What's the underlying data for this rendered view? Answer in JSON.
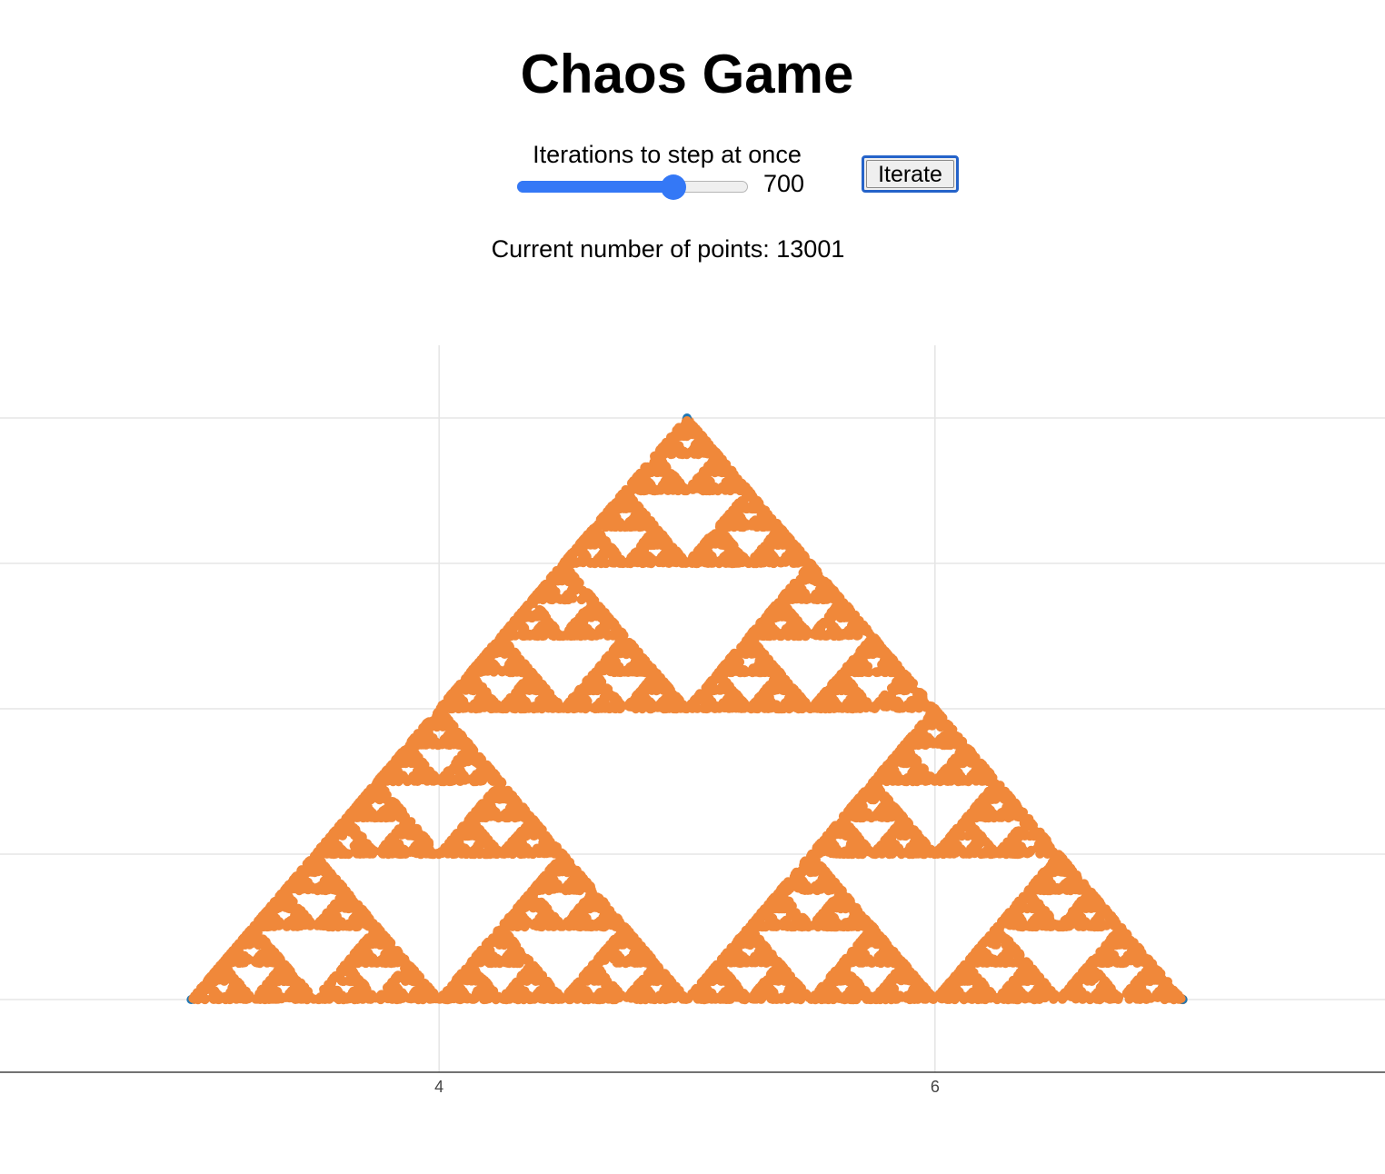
{
  "page": {
    "title": "Chaos Game"
  },
  "controls": {
    "slider_label": "Iterations to step at once",
    "slider_value": "700",
    "slider_min": 0,
    "slider_max": 1000,
    "slider_current": 700,
    "iterate_label": "Iterate"
  },
  "status": {
    "points_text": "Current number of points: 13001"
  },
  "colors": {
    "accent": "#3478f6",
    "points": "#f0883a",
    "vertex": "#1f77b4",
    "grid": "#e5e5e5"
  },
  "chart_data": {
    "type": "scatter",
    "title": "",
    "xlabel": "",
    "ylabel": "",
    "xlim": [
      2.229,
      7.815
    ],
    "ylim": [
      -0.5,
      4.5
    ],
    "x_ticks": [
      4,
      6
    ],
    "x_tick_labels": [
      "4",
      "6"
    ],
    "y_gridlines": [
      0,
      1,
      2,
      3,
      4
    ],
    "grid": true,
    "legend": "none",
    "vertices": [
      [
        3,
        0
      ],
      [
        7,
        0
      ],
      [
        5,
        4
      ]
    ],
    "start_point": [
      5,
      4
    ],
    "point_count": 13001,
    "series": [
      {
        "values": "chaos-game points (midpoint rule on the three vertices)"
      }
    ]
  }
}
